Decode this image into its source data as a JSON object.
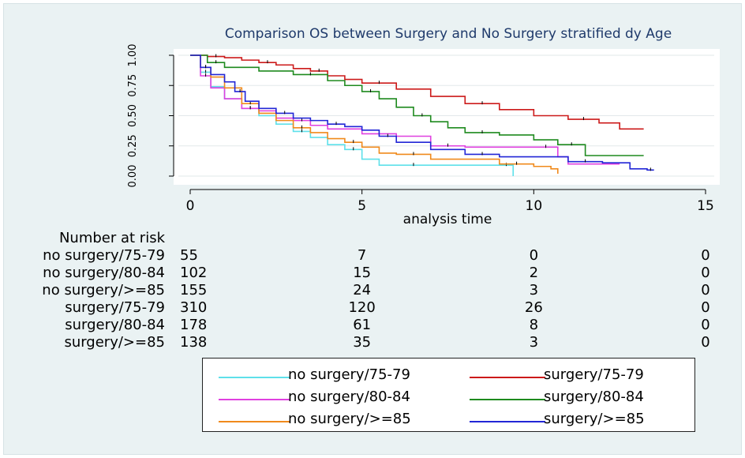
{
  "chart_data": {
    "type": "line",
    "title": "Comparison OS between Surgery and No Surgery stratified dy Age",
    "xlabel": "analysis time",
    "ylabel": "",
    "xlim": [
      0,
      15
    ],
    "ylim": [
      0,
      1
    ],
    "xticks": [
      "0",
      "5",
      "10",
      "15"
    ],
    "yticks": [
      "0.00",
      "0.25",
      "0.50",
      "0.75",
      "1.00"
    ],
    "grid": true,
    "series": [
      {
        "name": "no surgery/75-79",
        "color": "#5ee0ea",
        "x": [
          0,
          0.3,
          0.6,
          1.0,
          1.5,
          2.0,
          2.5,
          3.0,
          3.5,
          4.0,
          4.5,
          5.0,
          5.5,
          6.0,
          7.0,
          8.0,
          9.0,
          9.4
        ],
        "y": [
          1.0,
          0.86,
          0.74,
          0.64,
          0.56,
          0.5,
          0.43,
          0.37,
          0.32,
          0.26,
          0.22,
          0.14,
          0.09,
          0.09,
          0.09,
          0.09,
          0.09,
          0.0
        ]
      },
      {
        "name": "no surgery/80-84",
        "color": "#e040e0",
        "x": [
          0,
          0.3,
          0.6,
          1.0,
          1.5,
          2.0,
          2.5,
          3.0,
          3.5,
          4.0,
          5.0,
          6.0,
          6.5,
          7.0,
          8.0,
          9.0,
          10.0,
          10.7,
          11.0,
          12.5
        ],
        "y": [
          1.0,
          0.83,
          0.73,
          0.64,
          0.56,
          0.54,
          0.48,
          0.46,
          0.42,
          0.39,
          0.35,
          0.33,
          0.33,
          0.25,
          0.24,
          0.24,
          0.24,
          0.16,
          0.1,
          0.1
        ]
      },
      {
        "name": "no surgery/>=85",
        "color": "#f08a1c",
        "x": [
          0,
          0.3,
          0.6,
          1.0,
          1.5,
          2.0,
          2.5,
          3.0,
          3.5,
          4.0,
          4.5,
          5.0,
          5.5,
          6.0,
          7.0,
          8.0,
          9.0,
          10.0,
          10.5,
          10.7
        ],
        "y": [
          1.0,
          0.9,
          0.82,
          0.73,
          0.6,
          0.52,
          0.46,
          0.4,
          0.36,
          0.31,
          0.28,
          0.24,
          0.19,
          0.18,
          0.14,
          0.14,
          0.1,
          0.08,
          0.06,
          0.02
        ]
      },
      {
        "name": "surgery/75-79",
        "color": "#cc1a1a",
        "x": [
          0,
          0.5,
          1.0,
          1.5,
          2.0,
          2.5,
          3.0,
          3.5,
          4.0,
          4.5,
          5.0,
          6.0,
          7.0,
          8.0,
          9.0,
          10.0,
          11.0,
          11.9,
          12.5,
          13.2
        ],
        "y": [
          1.0,
          0.99,
          0.98,
          0.96,
          0.94,
          0.92,
          0.89,
          0.87,
          0.83,
          0.8,
          0.77,
          0.72,
          0.66,
          0.6,
          0.55,
          0.5,
          0.47,
          0.44,
          0.39,
          0.39
        ]
      },
      {
        "name": "surgery/80-84",
        "color": "#1e8a1e",
        "x": [
          0,
          0.5,
          1.0,
          2.0,
          3.0,
          4.0,
          4.5,
          5.0,
          5.5,
          6.0,
          6.5,
          7.0,
          7.5,
          8.0,
          9.0,
          10.0,
          10.7,
          11.5,
          12.0,
          13.2
        ],
        "y": [
          1.0,
          0.94,
          0.9,
          0.87,
          0.84,
          0.79,
          0.75,
          0.7,
          0.64,
          0.57,
          0.5,
          0.45,
          0.4,
          0.36,
          0.34,
          0.3,
          0.26,
          0.17,
          0.17,
          0.17
        ]
      },
      {
        "name": "surgery/>=85",
        "color": "#2226d6",
        "x": [
          0,
          0.3,
          0.6,
          1.0,
          1.3,
          1.6,
          2.0,
          2.5,
          3.0,
          3.5,
          4.0,
          4.5,
          5.0,
          5.5,
          6.0,
          7.0,
          8.0,
          9.0,
          10.0,
          11.0,
          12.0,
          12.8,
          13.3,
          13.5
        ],
        "y": [
          1.0,
          0.9,
          0.84,
          0.78,
          0.7,
          0.62,
          0.56,
          0.52,
          0.48,
          0.46,
          0.43,
          0.41,
          0.38,
          0.33,
          0.28,
          0.22,
          0.18,
          0.16,
          0.16,
          0.12,
          0.11,
          0.06,
          0.05,
          0.05
        ]
      }
    ],
    "risk_table": {
      "title": "Number at risk",
      "times": [
        0,
        5,
        10,
        15
      ],
      "rows": [
        {
          "label": "no surgery/75-79",
          "values": [
            "55",
            "7",
            "0",
            "0"
          ]
        },
        {
          "label": "no surgery/80-84",
          "values": [
            "102",
            "15",
            "2",
            "0"
          ]
        },
        {
          "label": "no surgery/>=85",
          "values": [
            "155",
            "24",
            "3",
            "0"
          ]
        },
        {
          "label": "surgery/75-79",
          "values": [
            "310",
            "120",
            "26",
            "0"
          ]
        },
        {
          "label": "surgery/80-84",
          "values": [
            "178",
            "61",
            "8",
            "0"
          ]
        },
        {
          "label": "surgery/>=85",
          "values": [
            "138",
            "35",
            "3",
            "0"
          ]
        }
      ]
    }
  },
  "legend": {
    "items": [
      {
        "label": "no surgery/75-79",
        "color": "#5ee0ea"
      },
      {
        "label": "no surgery/80-84",
        "color": "#e040e0"
      },
      {
        "label": "no surgery/>=85",
        "color": "#f08a1c"
      },
      {
        "label": "surgery/75-79",
        "color": "#cc1a1a"
      },
      {
        "label": "surgery/80-84",
        "color": "#1e8a1e"
      },
      {
        "label": "surgery/>=85",
        "color": "#2226d6"
      }
    ]
  }
}
